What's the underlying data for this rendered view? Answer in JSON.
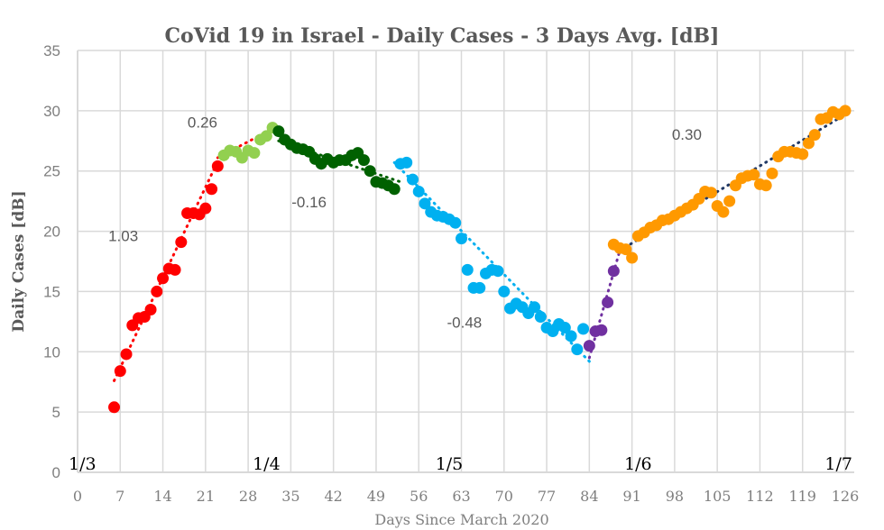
{
  "chart_data": {
    "type": "scatter",
    "title": "CoVid 19 in Israel - Daily Cases - 3 Days Avg. [dB]",
    "xlabel": "Days Since March 2020",
    "ylabel": "Daily Cases [dB]",
    "xlim": [
      0,
      126
    ],
    "ylim": [
      0,
      35
    ],
    "xticks": [
      0,
      7,
      14,
      21,
      28,
      35,
      42,
      49,
      56,
      63,
      70,
      77,
      84,
      91,
      98,
      105,
      112,
      119,
      126
    ],
    "yticks": [
      0,
      5,
      10,
      15,
      20,
      25,
      30,
      35
    ],
    "grid": true,
    "month_labels": [
      {
        "label": "1/3",
        "day": 0
      },
      {
        "label": "1/4",
        "day": 31
      },
      {
        "label": "1/5",
        "day": 61
      },
      {
        "label": "1/6",
        "day": 92
      },
      {
        "label": "1/7",
        "day": 122
      }
    ],
    "series": [
      {
        "name": "phase-1",
        "color": "#ff0000",
        "slope_label": "1.03",
        "slope_label_pos": [
          7.5,
          19.2
        ],
        "trend": [
          [
            6,
            7.6
          ],
          [
            23,
            25.8
          ]
        ],
        "x": [
          6,
          7,
          8,
          9,
          10,
          11,
          12,
          13,
          14,
          15,
          16,
          17,
          18,
          19,
          20,
          21,
          22,
          23
        ],
        "y": [
          5.4,
          8.4,
          9.8,
          12.2,
          12.8,
          12.9,
          13.5,
          15.0,
          16.1,
          16.9,
          16.8,
          19.1,
          21.5,
          21.5,
          21.4,
          21.9,
          23.5,
          25.4
        ]
      },
      {
        "name": "phase-2",
        "color": "#92d050",
        "slope_label": "0.26",
        "slope_label_pos": [
          20.5,
          28.6
        ],
        "trend": [
          [
            23,
            26.1
          ],
          [
            32,
            28.5
          ]
        ],
        "x": [
          24,
          25,
          26,
          27,
          28,
          29,
          30,
          31,
          32
        ],
        "y": [
          26.3,
          26.7,
          26.6,
          26.1,
          26.7,
          26.5,
          27.6,
          27.9,
          28.6
        ]
      },
      {
        "name": "phase-3",
        "color": "#006100",
        "slope_label": "-0.16",
        "slope_label_pos": [
          38,
          22.0
        ],
        "trend": [
          [
            33,
            27.5
          ],
          [
            53,
            24.1
          ]
        ],
        "x": [
          33,
          34,
          35,
          36,
          37,
          38,
          39,
          40,
          41,
          42,
          43,
          44,
          45,
          46,
          47,
          48,
          49,
          50,
          51,
          52
        ],
        "y": [
          28.3,
          27.6,
          27.2,
          26.9,
          26.8,
          26.6,
          26.0,
          25.6,
          26.0,
          25.7,
          25.9,
          25.9,
          26.3,
          26.5,
          25.9,
          25.0,
          24.1,
          24.0,
          23.8,
          23.5
        ]
      },
      {
        "name": "phase-4",
        "color": "#00b0f0",
        "slope_label": "-0.48",
        "slope_label_pos": [
          63.5,
          12.0
        ],
        "trend": [
          [
            52,
            25.7
          ],
          [
            84,
            9.2
          ]
        ],
        "x": [
          53,
          54,
          55,
          56,
          57,
          58,
          59,
          60,
          61,
          62,
          63,
          64,
          65,
          66,
          67,
          68,
          69,
          70,
          71,
          72,
          73,
          74,
          75,
          76,
          77,
          78,
          79,
          80,
          81,
          82,
          83
        ],
        "y": [
          25.6,
          25.7,
          24.3,
          23.3,
          22.3,
          21.6,
          21.3,
          21.2,
          21.0,
          20.7,
          19.4,
          16.8,
          15.3,
          15.3,
          16.5,
          16.8,
          16.7,
          15.0,
          13.6,
          14.0,
          13.7,
          13.2,
          13.7,
          12.9,
          12.0,
          11.7,
          12.3,
          12.0,
          11.3,
          10.2,
          11.9
        ]
      },
      {
        "name": "phase-5",
        "color": "#7030a0",
        "slope_label": "",
        "trend": [
          [
            84,
            9.5
          ],
          [
            89,
            18.4
          ]
        ],
        "x": [
          84,
          85,
          86,
          87,
          88
        ],
        "y": [
          10.5,
          11.7,
          11.8,
          14.1,
          16.7
        ]
      },
      {
        "name": "phase-6",
        "color": "#ff9900",
        "slope_label": "0.30",
        "slope_label_pos": [
          100,
          27.6
        ],
        "trend": [
          [
            89,
            18.4
          ],
          [
            127,
            30.0
          ]
        ],
        "x": [
          88,
          89,
          90,
          91,
          92,
          93,
          94,
          95,
          96,
          97,
          98,
          99,
          100,
          101,
          102,
          103,
          104,
          105,
          106,
          107,
          108,
          109,
          110,
          111,
          112,
          113,
          114,
          115,
          116,
          117,
          118,
          119,
          120,
          121,
          122,
          123,
          124,
          125,
          126
        ],
        "y": [
          18.9,
          18.6,
          18.5,
          17.8,
          19.6,
          19.9,
          20.3,
          20.5,
          20.9,
          21.0,
          21.3,
          21.6,
          21.9,
          22.2,
          22.7,
          23.3,
          23.2,
          22.1,
          21.6,
          22.5,
          23.8,
          24.4,
          24.6,
          24.7,
          23.9,
          23.8,
          24.8,
          26.2,
          26.6,
          26.6,
          26.5,
          26.4,
          27.3,
          28.0,
          29.3,
          29.4,
          29.9,
          29.7,
          30.0
        ]
      }
    ]
  }
}
